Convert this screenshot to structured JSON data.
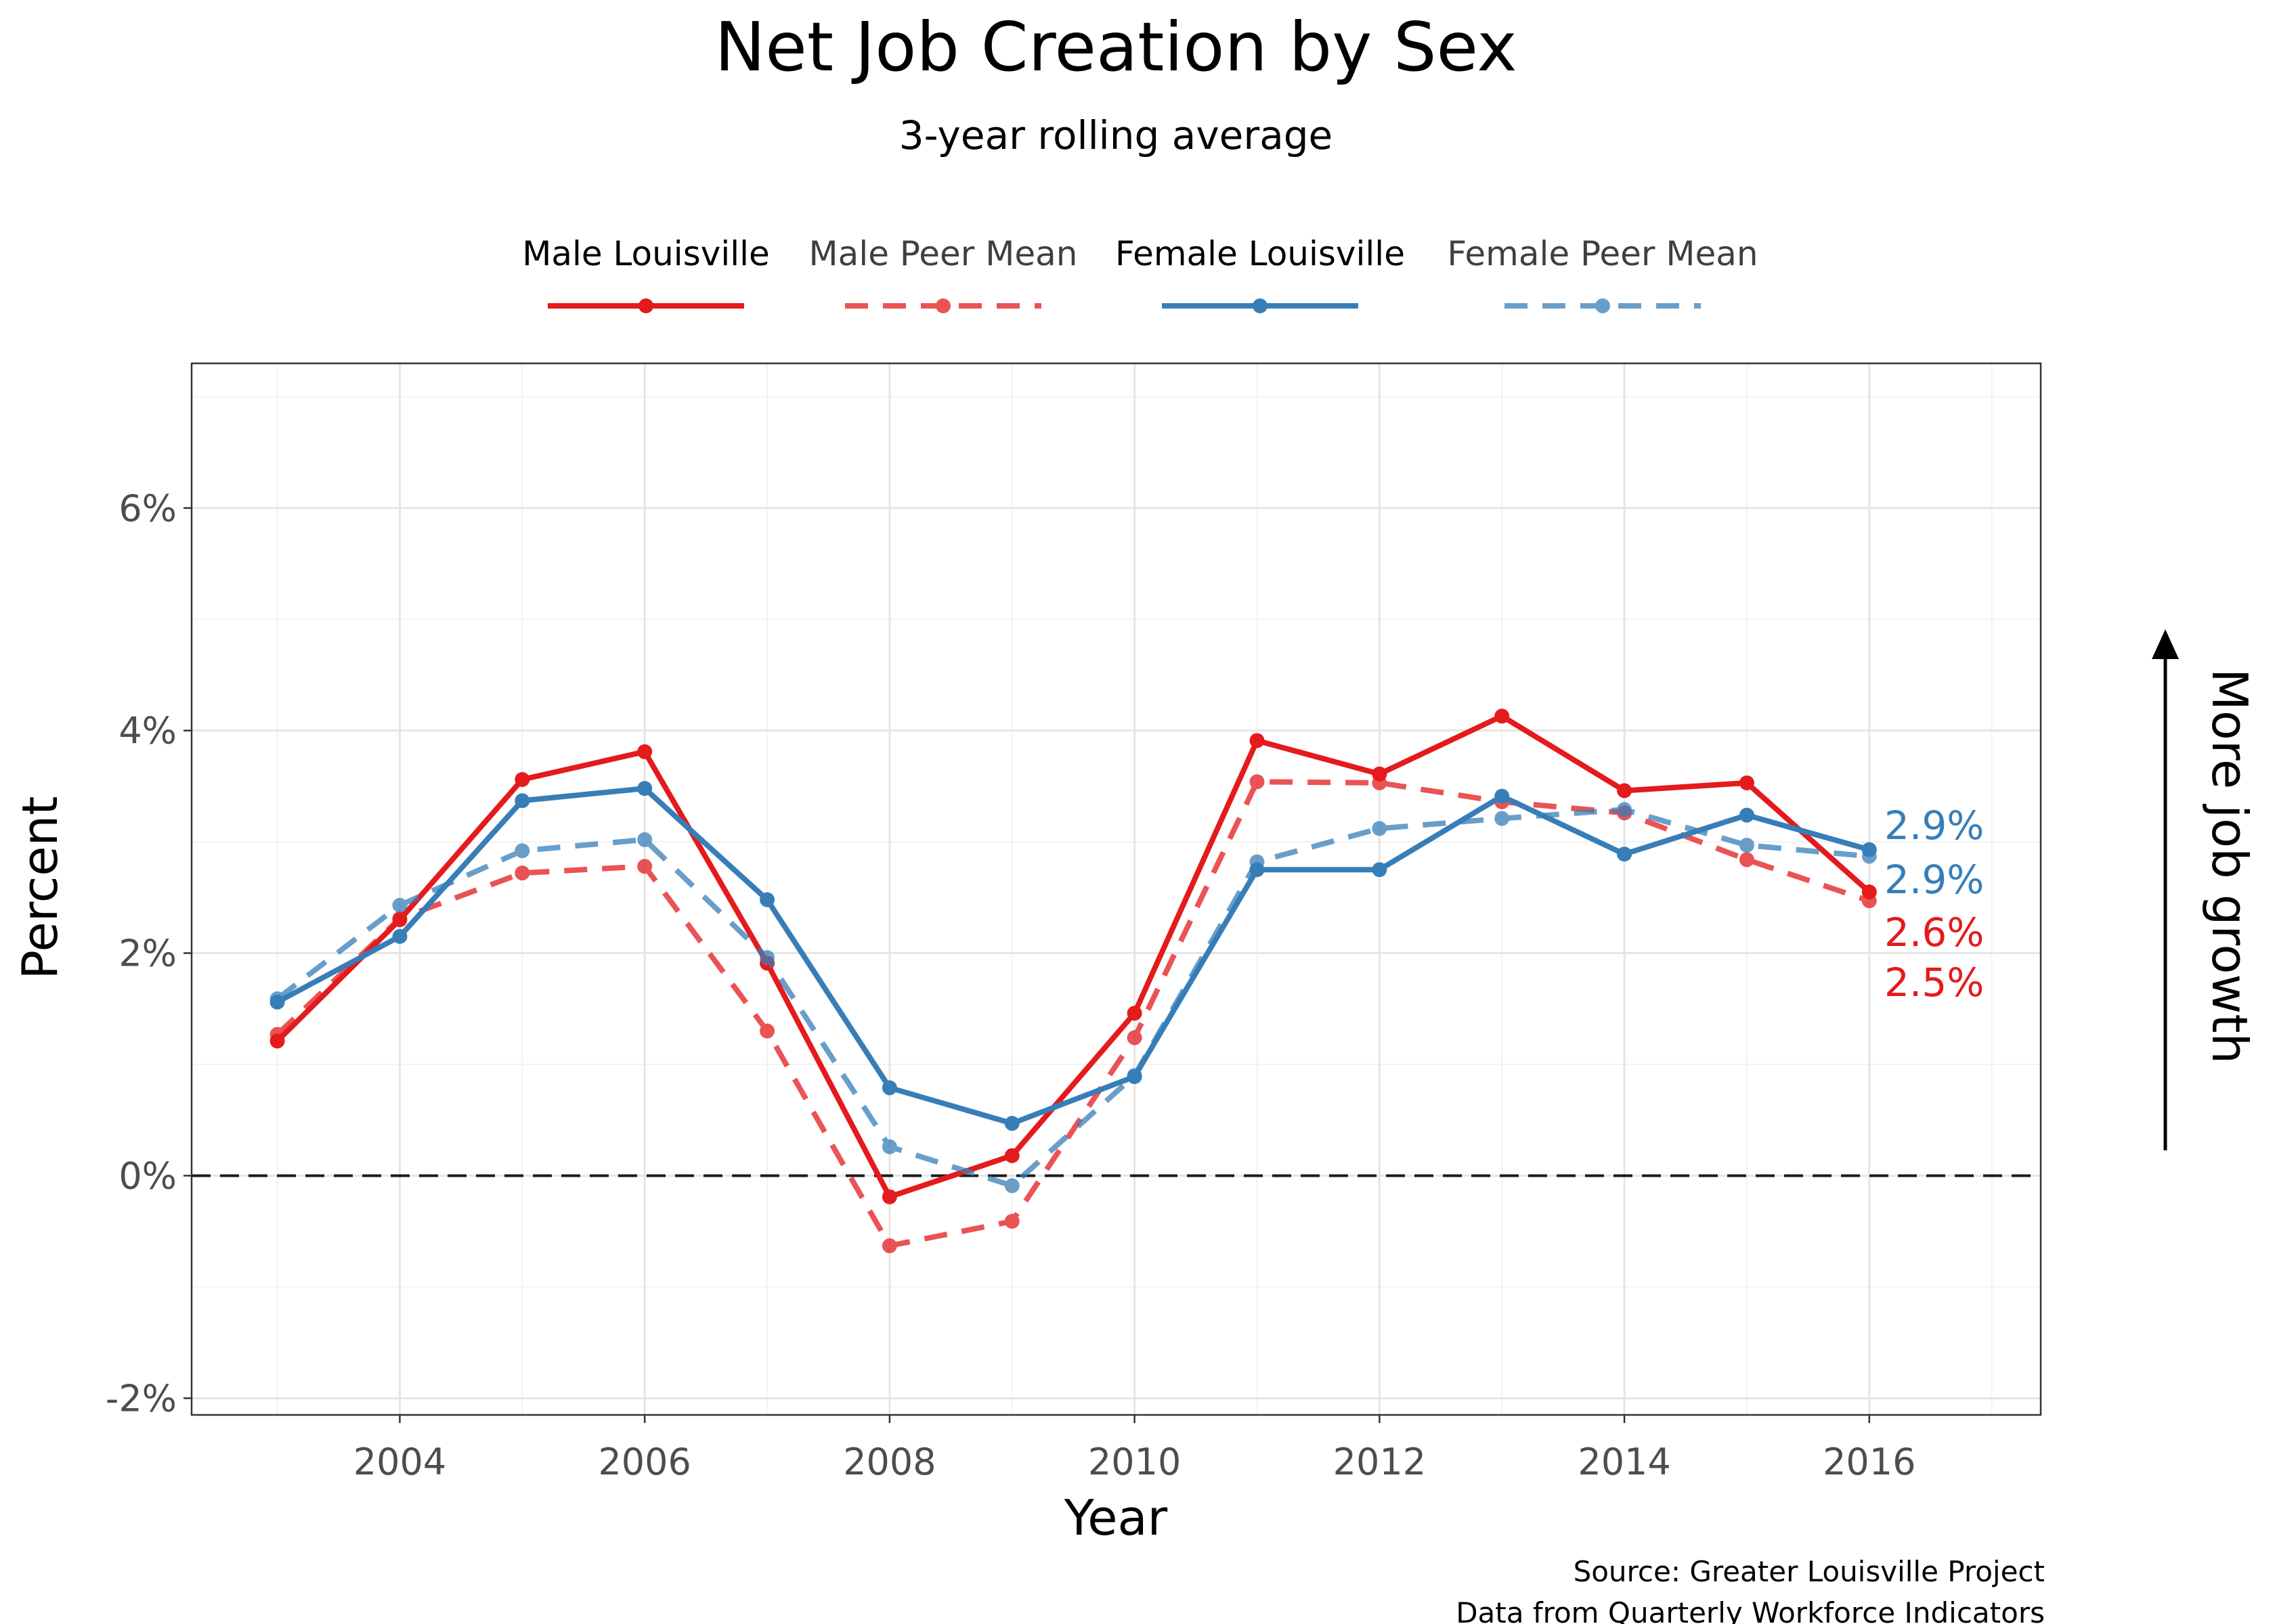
{
  "chart_data": {
    "type": "line",
    "title": "Net Job Creation by Sex",
    "subtitle": "3-year rolling average",
    "xlabel": "Year",
    "ylabel": "Percent",
    "xlim": [
      2002.3,
      2017.4
    ],
    "ylim": [
      -2.15,
      7.3
    ],
    "x_ticks": [
      2004,
      2006,
      2008,
      2010,
      2012,
      2014,
      2016
    ],
    "y_ticks": [
      -2,
      0,
      2,
      4,
      6
    ],
    "y_tick_labels": [
      "-2%",
      "0%",
      "2%",
      "4%",
      "6%"
    ],
    "grid": true,
    "legend_position": "top",
    "reference_line": 0,
    "x": [
      2003,
      2004,
      2005,
      2006,
      2007,
      2008,
      2009,
      2010,
      2011,
      2012,
      2013,
      2014,
      2015,
      2016
    ],
    "series": [
      {
        "name": "Male Louisville",
        "color": "#e41a1c",
        "dashed": false,
        "values": [
          1.21,
          2.3,
          3.56,
          3.81,
          1.91,
          -0.19,
          0.18,
          1.46,
          3.91,
          3.61,
          4.13,
          3.46,
          3.53,
          2.55
        ]
      },
      {
        "name": "Male Peer Mean",
        "color": "#e41a1c",
        "dashed": true,
        "values": [
          1.27,
          2.31,
          2.72,
          2.78,
          1.3,
          -0.63,
          -0.41,
          1.24,
          3.54,
          3.53,
          3.36,
          3.26,
          2.84,
          2.47
        ]
      },
      {
        "name": "Female Louisville",
        "color": "#377eb8",
        "dashed": false,
        "values": [
          1.56,
          2.15,
          3.37,
          3.48,
          2.48,
          0.79,
          0.47,
          0.89,
          2.75,
          2.75,
          3.41,
          2.89,
          3.24,
          2.93
        ]
      },
      {
        "name": "Female Peer Mean",
        "color": "#377eb8",
        "dashed": true,
        "values": [
          1.59,
          2.43,
          2.92,
          3.02,
          1.96,
          0.26,
          -0.09,
          0.9,
          2.82,
          3.12,
          3.21,
          3.29,
          2.97,
          2.87
        ]
      }
    ],
    "end_labels": [
      {
        "text": "2.9%",
        "color": "#377eb8"
      },
      {
        "text": "2.9%",
        "color": "#377eb8"
      },
      {
        "text": "2.6%",
        "color": "#e41a1c"
      },
      {
        "text": "2.5%",
        "color": "#e41a1c"
      }
    ],
    "annotation": "More job growth",
    "caption_lines": [
      "Source: Greater Louisville Project",
      "Data from Quarterly Workforce Indicators"
    ]
  }
}
